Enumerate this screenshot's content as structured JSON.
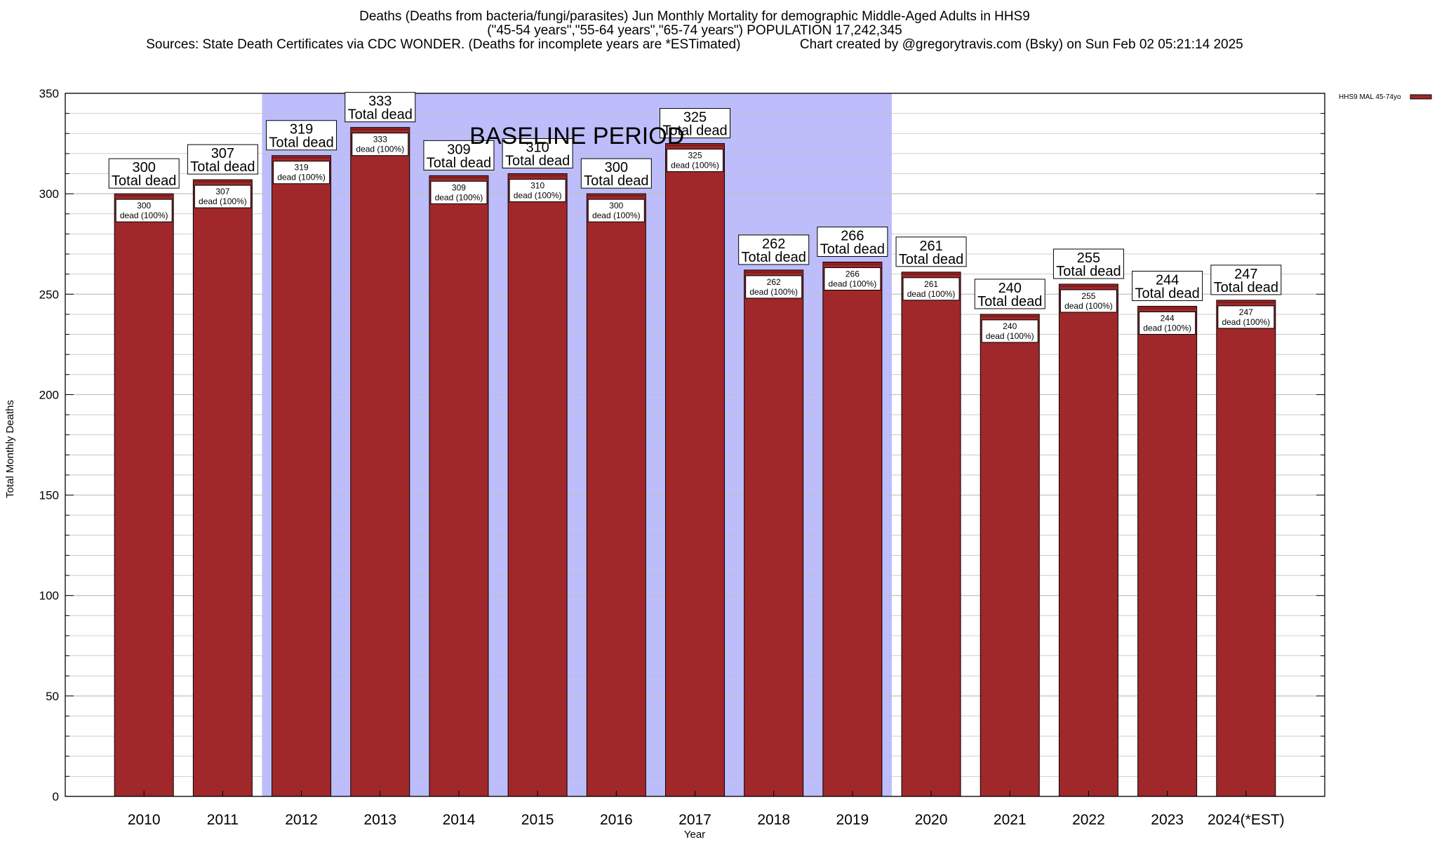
{
  "header": {
    "title_line1": "Deaths (Deaths from bacteria/fungi/parasites) Jun Monthly Mortality for demographic Middle-Aged Adults in HHS9",
    "title_line2": "(\"45-54 years\",\"55-64 years\",\"65-74 years\") POPULATION 17,242,345",
    "title_line3": "Sources: State Death Certificates via CDC WONDER. (Deaths for incomplete years are *ESTimated)                Chart created by @gregorytravis.com (Bsky) on Sun Feb 02 05:21:14 2025"
  },
  "chart_data": {
    "type": "bar",
    "xlabel": "Year",
    "ylabel": "Total Monthly Deaths",
    "ylim": [
      0,
      350
    ],
    "y_major_ticks": [
      0,
      50,
      100,
      150,
      200,
      250,
      300,
      350
    ],
    "y_minor_step": 10,
    "grid": true,
    "categories": [
      "2010",
      "2011",
      "2012",
      "2013",
      "2014",
      "2015",
      "2016",
      "2017",
      "2018",
      "2019",
      "2020",
      "2021",
      "2022",
      "2023",
      "2024(*EST)"
    ],
    "series": [
      {
        "name": "HHS9 MAL 45-74yo",
        "values": [
          300,
          307,
          319,
          333,
          309,
          310,
          300,
          325,
          262,
          266,
          261,
          240,
          255,
          244,
          247
        ],
        "percent_labels": [
          "100%",
          "100%",
          "100%",
          "100%",
          "100%",
          "100%",
          "100%",
          "100%",
          "100%",
          "100%",
          "100%",
          "100%",
          "100%",
          "100%",
          "100%"
        ]
      }
    ],
    "total_label_text": "Total dead",
    "bar_label_text": "dead",
    "baseline": {
      "label": "BASELINE PERIOD",
      "start_category": "2012",
      "end_category": "2019"
    },
    "legend": {
      "placement": "top-right outside",
      "label": "HHS9 MAL 45-74yo"
    },
    "colors": {
      "bar_fill": "#A0282A",
      "bar_top": "#7a1a1c",
      "baseline_fill": "#BDBDFB",
      "grid": "#c0c0c0",
      "axis": "#000000"
    }
  }
}
